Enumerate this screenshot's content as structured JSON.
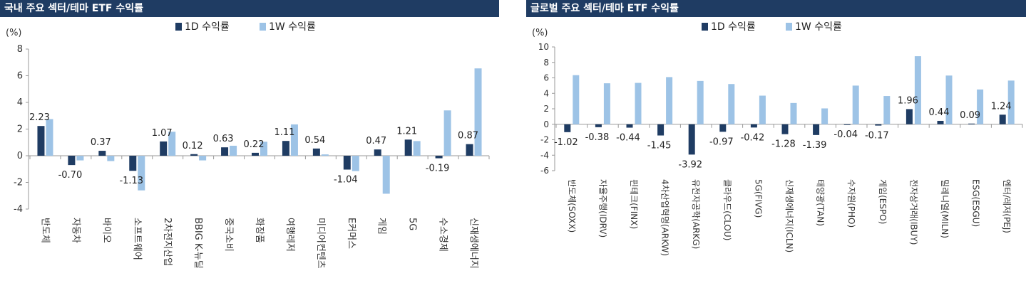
{
  "chart_data": [
    {
      "type": "bar",
      "title": "국내 주요 섹터/테마 ETF 수익률",
      "ylabel": "(%)",
      "ylim": [
        -4,
        8
      ],
      "yticks": [
        -4,
        -2,
        0,
        2,
        4,
        6,
        8
      ],
      "grid": false,
      "legend_position": "top-center",
      "colors": [
        "#1f3c63",
        "#9dc3e6"
      ],
      "categories": [
        "반도체",
        "자동차",
        "바이오",
        "소프트웨어",
        "2차전지산업",
        "BBIG K-뉴딜",
        "중국소비",
        "화장품",
        "여행레저",
        "미디어컨텐츠",
        "E커머스",
        "게임",
        "5G",
        "수소경제",
        "신재생에너지"
      ],
      "series": [
        {
          "name": "1D 수익률",
          "values": [
            2.23,
            -0.7,
            0.37,
            -1.13,
            1.07,
            0.12,
            0.63,
            0.22,
            1.11,
            0.54,
            -1.04,
            0.47,
            1.21,
            -0.19,
            0.87
          ]
        },
        {
          "name": "1W 수익률",
          "values": [
            2.75,
            -0.35,
            -0.4,
            -2.6,
            1.8,
            -0.35,
            0.75,
            1.05,
            2.35,
            0.1,
            -1.15,
            -2.85,
            1.1,
            3.4,
            6.55
          ]
        }
      ],
      "data_labels": [
        "2.23",
        "-0.70",
        "0.37",
        "-1.13",
        "1.07",
        "0.12",
        "0.63",
        "0.22",
        "1.11",
        "0.54",
        "-1.04",
        "0.47",
        "1.21",
        "-0.19",
        "0.87"
      ]
    },
    {
      "type": "bar",
      "title": "글로벌 주요 섹터/테마 ETF 수익률",
      "ylabel": "(%)",
      "ylim": [
        -6,
        10
      ],
      "yticks": [
        -6,
        -4,
        -2,
        0,
        2,
        4,
        6,
        8,
        10
      ],
      "grid": false,
      "legend_position": "top-center",
      "colors": [
        "#1f3c63",
        "#9dc3e6"
      ],
      "categories": [
        "반도체(SOXX)",
        "자율주행(IDRV)",
        "핀테크(FINX)",
        "4차산업혁명(ARKW)",
        "유전자공학(ARKG)",
        "클라우드(CLOU)",
        "5G(FIVG)",
        "신재생에너지(ICLN)",
        "태양광(TAN)",
        "수자원(PHO)",
        "게임(ESPO)",
        "전자상거래(IBUY)",
        "밀레니얼(MILN)",
        "ESG(ESGU)",
        "엔터/레저(PEJ)"
      ],
      "series": [
        {
          "name": "1D 수익률",
          "values": [
            -1.02,
            -0.38,
            -0.44,
            -1.45,
            -3.92,
            -0.97,
            -0.42,
            -1.28,
            -1.39,
            -0.04,
            -0.17,
            1.96,
            0.44,
            0.09,
            1.24
          ]
        },
        {
          "name": "1W 수익률",
          "values": [
            6.35,
            5.3,
            5.35,
            6.1,
            5.6,
            5.2,
            3.7,
            2.75,
            2.05,
            5.0,
            3.65,
            8.8,
            6.3,
            4.5,
            5.65
          ]
        }
      ],
      "data_labels": [
        "-1.02",
        "-0.38",
        "-0.44",
        "-1.45",
        "-3.92",
        "-0.97",
        "-0.42",
        "-1.28",
        "-1.39",
        "-0.04",
        "-0.17",
        "1.96",
        "0.44",
        "0.09",
        "1.24"
      ]
    }
  ]
}
